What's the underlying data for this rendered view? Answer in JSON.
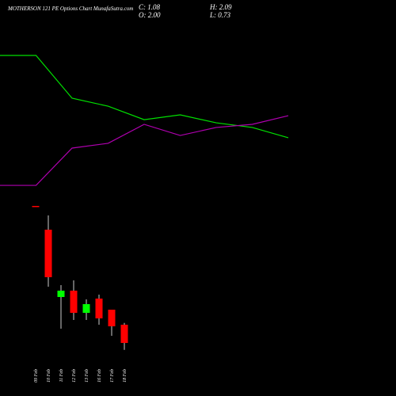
{
  "chart_data": [
    {
      "type": "line",
      "title": "MOTHERSON 121 PE Options Chart MunafaSutra.com",
      "categories": [
        null,
        null,
        null,
        null,
        null,
        null,
        null,
        null,
        null
      ],
      "ylim": [
        0,
        100
      ],
      "series": [
        {
          "color": "#00e000",
          "values": [
            85.7,
            85.7,
            60,
            55.2,
            47.1,
            50,
            45.2,
            42.4,
            36.2
          ]
        },
        {
          "color": "#b000b0",
          "values": [
            7.6,
            7.6,
            30,
            32.9,
            44.3,
            37.6,
            42.4,
            44.3,
            49.5
          ]
        }
      ]
    },
    {
      "type": "candlestick",
      "info": [
        "C: 1.08",
        "O: 2.00",
        "H: 2.09",
        "L: 0.73"
      ],
      "categories": [
        "09 Feb",
        "10 Feb",
        "11 Feb",
        "12 Feb",
        "13 Feb",
        "16 Feb",
        "17 Feb",
        "18 Feb"
      ],
      "ylim": [
        0,
        8.4
      ],
      "up_color": "#00ff00",
      "down_color": "#ff0000",
      "open": [
        8.0,
        6.8,
        3.4,
        3.72,
        2.6,
        3.32,
        2.76,
        2.0
      ],
      "high": [
        8.0,
        7.52,
        4.0,
        4.24,
        3.28,
        3.52,
        2.76,
        2.09
      ],
      "low": [
        8.0,
        3.92,
        1.8,
        2.24,
        2.24,
        2.0,
        1.44,
        0.73
      ],
      "close": [
        8.0,
        4.4,
        3.72,
        2.6,
        3.04,
        2.32,
        1.92,
        1.08
      ]
    }
  ]
}
